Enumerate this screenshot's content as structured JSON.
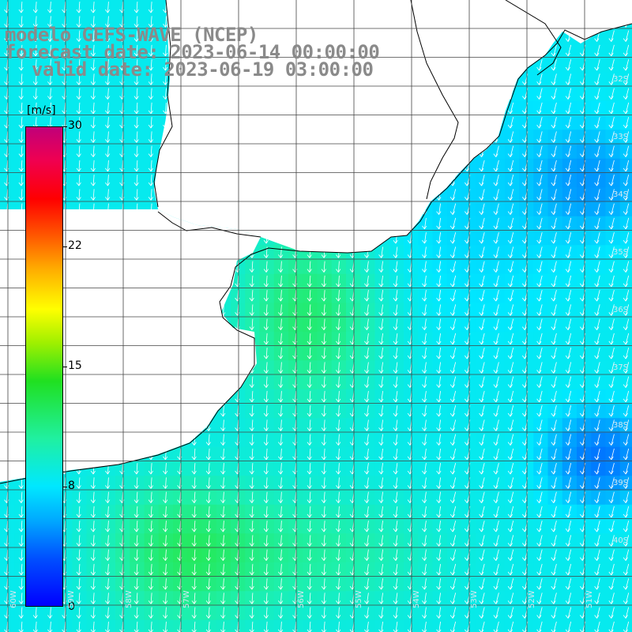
{
  "title": {
    "line1": "modelo GEFS-WAVE (NCEP)",
    "line2": "forecast date: 2023-06-14 00:00:00",
    "line3": "valid date: 2023-06-19 03:00:00"
  },
  "colorbar": {
    "unit": "[m/s]",
    "ticks": [
      "30",
      "22",
      "15",
      "8",
      "0"
    ],
    "tick_values": [
      30,
      22,
      15,
      8,
      0
    ],
    "min": 0,
    "max": 30
  },
  "lat_labels": [
    "32S",
    "33S",
    "34S",
    "35S",
    "36S",
    "37S",
    "38S",
    "39S",
    "40S"
  ],
  "lon_labels": [
    "60W",
    "59W",
    "58W",
    "57W",
    "56W",
    "55W",
    "54W",
    "53W",
    "52W",
    "51W"
  ],
  "colors": {
    "land": "#ffffff",
    "coast": "#000000",
    "grid": "#444444",
    "arrow": "#ffffff",
    "title": "#8a8a8a"
  }
}
